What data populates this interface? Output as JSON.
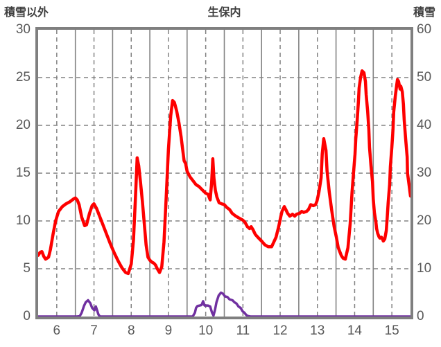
{
  "title": "生保内",
  "left_axis": {
    "label": "積雪以外",
    "min": 0,
    "max": 30,
    "ticks": [
      30,
      25,
      20,
      15,
      10,
      5,
      0
    ]
  },
  "right_axis": {
    "label": "積雪",
    "min": 0,
    "max": 60,
    "ticks": [
      60,
      50,
      40,
      30,
      20,
      10,
      0
    ]
  },
  "x_axis": {
    "min": 6,
    "max": 16,
    "ticks": [
      6,
      7,
      8,
      9,
      10,
      11,
      12,
      13,
      14,
      15
    ]
  },
  "colors": {
    "snow_line": "#fe0000",
    "other_line": "#7030a0",
    "grid": "#828282",
    "frame": "#7f7f7f",
    "tick_text": "#595959",
    "header_text": "#3f3f3f"
  },
  "chart_data": {
    "type": "line",
    "title": "生保内",
    "xlabel": "",
    "x_ticks": [
      6,
      7,
      8,
      9,
      10,
      11,
      12,
      13,
      14,
      15
    ],
    "x_range": [
      6,
      16
    ],
    "left_axis_label": "積雪以外",
    "left_range": [
      0,
      30
    ],
    "right_axis_label": "積雪",
    "right_range": [
      0,
      60
    ],
    "grid": {
      "vertical_solid_at_day_start": true,
      "vertical_dashed_at_half_day": true,
      "horizontal_dashed": true
    },
    "legend_position": "none",
    "series": [
      {
        "name": "積雪",
        "axis": "right",
        "color": "#fe0000",
        "points": [
          [
            6.0,
            12.8
          ],
          [
            6.05,
            13.4
          ],
          [
            6.1,
            13.6
          ],
          [
            6.15,
            12.6
          ],
          [
            6.2,
            12.0
          ],
          [
            6.28,
            12.4
          ],
          [
            6.33,
            14.0
          ],
          [
            6.4,
            17.2
          ],
          [
            6.47,
            20.0
          ],
          [
            6.55,
            22.0
          ],
          [
            6.65,
            23.0
          ],
          [
            6.75,
            23.6
          ],
          [
            6.85,
            24.0
          ],
          [
            6.95,
            24.6
          ],
          [
            7.0,
            24.8
          ],
          [
            7.05,
            24.4
          ],
          [
            7.1,
            23.4
          ],
          [
            7.17,
            20.8
          ],
          [
            7.25,
            19.0
          ],
          [
            7.3,
            19.2
          ],
          [
            7.38,
            21.6
          ],
          [
            7.45,
            23.2
          ],
          [
            7.5,
            23.6
          ],
          [
            7.57,
            22.6
          ],
          [
            7.65,
            21.0
          ],
          [
            7.75,
            19.0
          ],
          [
            7.85,
            17.0
          ],
          [
            7.95,
            15.0
          ],
          [
            8.05,
            13.2
          ],
          [
            8.15,
            11.6
          ],
          [
            8.25,
            10.2
          ],
          [
            8.35,
            9.2
          ],
          [
            8.42,
            9.0
          ],
          [
            8.5,
            11.0
          ],
          [
            8.56,
            16.0
          ],
          [
            8.62,
            26.0
          ],
          [
            8.66,
            33.2
          ],
          [
            8.7,
            31.6
          ],
          [
            8.75,
            28.0
          ],
          [
            8.8,
            24.0
          ],
          [
            8.85,
            19.6
          ],
          [
            8.9,
            15.0
          ],
          [
            8.95,
            12.4
          ],
          [
            9.0,
            11.8
          ],
          [
            9.05,
            11.4
          ],
          [
            9.1,
            11.2
          ],
          [
            9.15,
            10.8
          ],
          [
            9.2,
            10.0
          ],
          [
            9.26,
            9.2
          ],
          [
            9.32,
            10.4
          ],
          [
            9.38,
            15.6
          ],
          [
            9.44,
            25.0
          ],
          [
            9.5,
            35.0
          ],
          [
            9.56,
            42.0
          ],
          [
            9.61,
            45.2
          ],
          [
            9.66,
            44.8
          ],
          [
            9.72,
            43.0
          ],
          [
            9.78,
            40.6
          ],
          [
            9.84,
            37.6
          ],
          [
            9.88,
            35.0
          ],
          [
            9.92,
            32.6
          ],
          [
            9.96,
            32.0
          ],
          [
            10.0,
            30.4
          ],
          [
            10.08,
            29.2
          ],
          [
            10.16,
            28.4
          ],
          [
            10.24,
            27.6
          ],
          [
            10.32,
            27.2
          ],
          [
            10.42,
            26.4
          ],
          [
            10.5,
            25.8
          ],
          [
            10.56,
            25.6
          ],
          [
            10.62,
            24.4
          ],
          [
            10.66,
            28.0
          ],
          [
            10.69,
            33.0
          ],
          [
            10.72,
            29.0
          ],
          [
            10.76,
            26.4
          ],
          [
            10.8,
            25.0
          ],
          [
            10.86,
            23.8
          ],
          [
            10.93,
            23.6
          ],
          [
            11.0,
            23.4
          ],
          [
            11.07,
            22.8
          ],
          [
            11.14,
            22.4
          ],
          [
            11.21,
            21.6
          ],
          [
            11.31,
            21.0
          ],
          [
            11.4,
            20.6
          ],
          [
            11.49,
            20.2
          ],
          [
            11.55,
            19.8
          ],
          [
            11.62,
            18.8
          ],
          [
            11.68,
            18.4
          ],
          [
            11.72,
            18.8
          ],
          [
            11.77,
            18.2
          ],
          [
            11.83,
            17.2
          ],
          [
            11.9,
            16.6
          ],
          [
            12.0,
            15.8
          ],
          [
            12.09,
            15.0
          ],
          [
            12.18,
            14.6
          ],
          [
            12.27,
            14.6
          ],
          [
            12.33,
            15.6
          ],
          [
            12.39,
            16.6
          ],
          [
            12.42,
            17.6
          ],
          [
            12.46,
            18.8
          ],
          [
            12.52,
            21.0
          ],
          [
            12.55,
            22.0
          ],
          [
            12.61,
            23.0
          ],
          [
            12.65,
            22.4
          ],
          [
            12.7,
            21.6
          ],
          [
            12.76,
            21.0
          ],
          [
            12.83,
            21.4
          ],
          [
            12.89,
            21.0
          ],
          [
            12.94,
            21.4
          ],
          [
            13.02,
            21.6
          ],
          [
            13.08,
            22.0
          ],
          [
            13.13,
            21.8
          ],
          [
            13.21,
            22.0
          ],
          [
            13.26,
            22.4
          ],
          [
            13.32,
            23.4
          ],
          [
            13.39,
            23.2
          ],
          [
            13.45,
            23.4
          ],
          [
            13.49,
            24.2
          ],
          [
            13.54,
            26.0
          ],
          [
            13.6,
            29.0
          ],
          [
            13.63,
            34.0
          ],
          [
            13.67,
            37.2
          ],
          [
            13.73,
            34.8
          ],
          [
            13.76,
            30.4
          ],
          [
            13.82,
            26.0
          ],
          [
            13.88,
            22.4
          ],
          [
            13.95,
            18.8
          ],
          [
            14.01,
            16.6
          ],
          [
            14.06,
            14.4
          ],
          [
            14.14,
            12.8
          ],
          [
            14.19,
            12.2
          ],
          [
            14.25,
            12.0
          ],
          [
            14.32,
            14.4
          ],
          [
            14.38,
            19.4
          ],
          [
            14.43,
            26.0
          ],
          [
            14.47,
            30.0
          ],
          [
            14.51,
            34.0
          ],
          [
            14.53,
            37.2
          ],
          [
            14.57,
            41.2
          ],
          [
            14.6,
            44.8
          ],
          [
            14.62,
            47.8
          ],
          [
            14.66,
            50.0
          ],
          [
            14.7,
            51.4
          ],
          [
            14.75,
            51.0
          ],
          [
            14.79,
            49.2
          ],
          [
            14.81,
            46.4
          ],
          [
            14.85,
            43.0
          ],
          [
            14.88,
            39.2
          ],
          [
            14.9,
            35.4
          ],
          [
            14.94,
            31.4
          ],
          [
            14.98,
            28.2
          ],
          [
            15.0,
            24.6
          ],
          [
            15.03,
            21.8
          ],
          [
            15.07,
            19.8
          ],
          [
            15.09,
            18.4
          ],
          [
            15.12,
            17.4
          ],
          [
            15.16,
            16.6
          ],
          [
            15.18,
            16.4
          ],
          [
            15.22,
            16.6
          ],
          [
            15.25,
            16.2
          ],
          [
            15.27,
            15.8
          ],
          [
            15.31,
            16.2
          ],
          [
            15.35,
            18.0
          ],
          [
            15.37,
            20.2
          ],
          [
            15.4,
            23.8
          ],
          [
            15.44,
            27.6
          ],
          [
            15.46,
            31.4
          ],
          [
            15.5,
            35.4
          ],
          [
            15.53,
            39.2
          ],
          [
            15.55,
            42.8
          ],
          [
            15.59,
            46.0
          ],
          [
            15.63,
            48.4
          ],
          [
            15.65,
            49.6
          ],
          [
            15.68,
            49.2
          ],
          [
            15.72,
            47.6
          ],
          [
            15.74,
            48.2
          ],
          [
            15.78,
            47.0
          ],
          [
            15.81,
            44.4
          ],
          [
            15.83,
            41.2
          ],
          [
            15.87,
            37.2
          ],
          [
            15.91,
            33.4
          ],
          [
            15.92,
            30.0
          ],
          [
            15.96,
            27.6
          ],
          [
            16.0,
            25.2
          ]
        ]
      },
      {
        "name": "積雪以外",
        "axis": "left",
        "color": "#7030a0",
        "points": [
          [
            6.0,
            0
          ],
          [
            7.05,
            0
          ],
          [
            7.12,
            0.05
          ],
          [
            7.17,
            0.4
          ],
          [
            7.23,
            1.1
          ],
          [
            7.28,
            1.5
          ],
          [
            7.34,
            1.7
          ],
          [
            7.4,
            1.4
          ],
          [
            7.45,
            0.9
          ],
          [
            7.51,
            0.65
          ],
          [
            7.55,
            1.05
          ],
          [
            7.58,
            0.7
          ],
          [
            7.62,
            0.2
          ],
          [
            7.66,
            0
          ],
          [
            10.15,
            0
          ],
          [
            10.21,
            0.4
          ],
          [
            10.24,
            0.9
          ],
          [
            10.28,
            1.1
          ],
          [
            10.34,
            1.15
          ],
          [
            10.39,
            1.2
          ],
          [
            10.43,
            1.6
          ],
          [
            10.47,
            1.15
          ],
          [
            10.56,
            1.15
          ],
          [
            10.62,
            1.05
          ],
          [
            10.67,
            0.4
          ],
          [
            10.71,
            0.1
          ],
          [
            10.75,
            0.7
          ],
          [
            10.79,
            1.5
          ],
          [
            10.85,
            2.2
          ],
          [
            10.91,
            2.5
          ],
          [
            10.96,
            2.4
          ],
          [
            11.02,
            2.1
          ],
          [
            11.08,
            2.05
          ],
          [
            11.14,
            1.8
          ],
          [
            11.22,
            1.7
          ],
          [
            11.27,
            1.5
          ],
          [
            11.33,
            1.35
          ],
          [
            11.38,
            1.05
          ],
          [
            11.44,
            0.9
          ],
          [
            11.49,
            0.55
          ],
          [
            11.54,
            0.4
          ],
          [
            11.59,
            0.15
          ],
          [
            11.64,
            0.05
          ],
          [
            11.7,
            0
          ],
          [
            16.0,
            0
          ]
        ]
      }
    ]
  }
}
